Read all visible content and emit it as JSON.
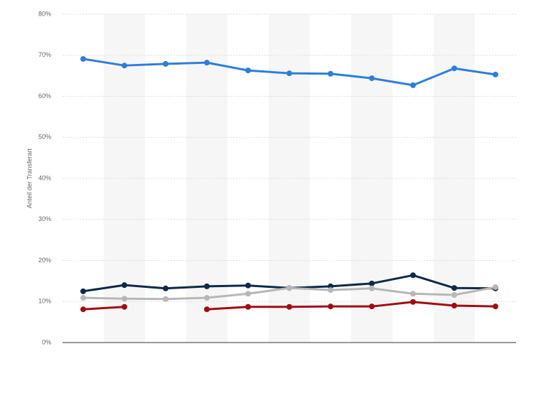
{
  "chart_data": {
    "type": "line",
    "y_axis_label": "Anteil der Transferart",
    "categories": [
      null,
      null,
      null,
      null,
      null,
      null,
      null,
      null,
      null,
      null,
      null
    ],
    "series": [
      {
        "color": "#2f7ed8",
        "values": [
          69.1,
          67.5,
          67.9,
          68.2,
          66.3,
          65.6,
          65.5,
          64.4,
          62.7,
          66.8,
          65.3
        ]
      },
      {
        "color": "#0f2a45",
        "values": [
          12.5,
          14.0,
          13.2,
          13.7,
          13.9,
          13.3,
          13.7,
          14.4,
          16.4,
          13.3,
          13.2
        ]
      },
      {
        "color": "#b7b7b7",
        "values": [
          10.9,
          10.7,
          10.6,
          10.9,
          11.9,
          13.3,
          12.8,
          13.2,
          11.9,
          11.6,
          13.5
        ]
      },
      {
        "color": "#a10d12",
        "values": [
          8.1,
          8.7,
          null,
          8.1,
          8.7,
          8.7,
          8.8,
          8.8,
          9.9,
          9.0,
          8.8
        ]
      }
    ],
    "ylim": [
      0,
      80
    ],
    "yticks": [
      {
        "value": 0,
        "label": "0%"
      },
      {
        "value": 10,
        "label": "10%"
      },
      {
        "value": 20,
        "label": "20%"
      },
      {
        "value": 30,
        "label": "30%"
      },
      {
        "value": 40,
        "label": "40%"
      },
      {
        "value": 50,
        "label": "50%"
      },
      {
        "value": 60,
        "label": "60%"
      },
      {
        "value": 70,
        "label": "70%"
      },
      {
        "value": 80,
        "label": "80%"
      }
    ],
    "grid": true
  }
}
